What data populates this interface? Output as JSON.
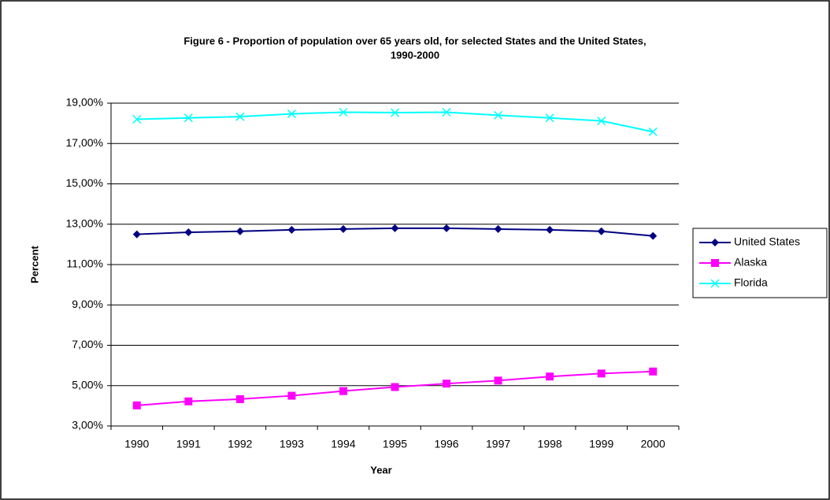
{
  "chart_data": {
    "type": "line",
    "title": [
      "Figure 6 - Proportion of population over 65 years old, for selected States and the United States,",
      "1990-2000"
    ],
    "x_label": "Year",
    "y_label": "Percent",
    "categories": [
      "1990",
      "1991",
      "1992",
      "1993",
      "1994",
      "1995",
      "1996",
      "1997",
      "1998",
      "1999",
      "2000"
    ],
    "series": [
      {
        "name": "United States",
        "color": "#000080",
        "marker": "diamond",
        "values": [
          12.5,
          12.6,
          12.65,
          12.72,
          12.76,
          12.8,
          12.8,
          12.76,
          12.72,
          12.65,
          12.42
        ]
      },
      {
        "name": "Alaska",
        "color": "#ff00ff",
        "marker": "square",
        "values": [
          4.02,
          4.22,
          4.33,
          4.5,
          4.73,
          4.93,
          5.1,
          5.25,
          5.45,
          5.6,
          5.7
        ]
      },
      {
        "name": "Florida",
        "color": "#00ffff",
        "marker": "x",
        "values": [
          18.2,
          18.27,
          18.33,
          18.47,
          18.55,
          18.53,
          18.55,
          18.4,
          18.27,
          18.12,
          17.58
        ]
      }
    ],
    "ylim": [
      3,
      19
    ],
    "yticks": [
      {
        "value": 3,
        "label": "3,00%"
      },
      {
        "value": 5,
        "label": "5,00%"
      },
      {
        "value": 7,
        "label": "7,00%"
      },
      {
        "value": 9,
        "label": "9,00%"
      },
      {
        "value": 11,
        "label": "11,00%"
      },
      {
        "value": 13,
        "label": "13,00%"
      },
      {
        "value": 15,
        "label": "15,00%"
      },
      {
        "value": 17,
        "label": "17,00%"
      },
      {
        "value": 19,
        "label": "19,00%"
      }
    ],
    "grid": true,
    "legend": "right"
  }
}
